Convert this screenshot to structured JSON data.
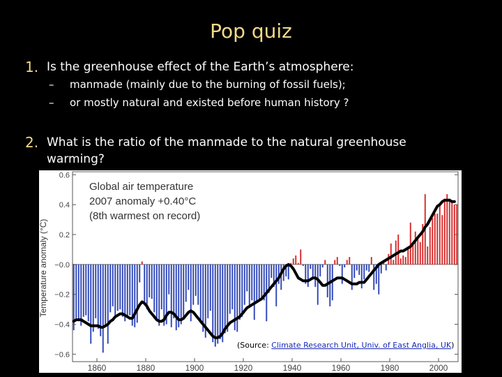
{
  "slide": {
    "title": "Pop quiz",
    "q1": {
      "num": "1.",
      "text": "Is the greenhouse effect of the Earth’s atmosphere:",
      "bullets": [
        "manmade (mainly due to the burning of fossil fuels);",
        "or mostly natural and existed before human history ?"
      ],
      "dash": "–"
    },
    "q2": {
      "num": "2.",
      "line1": "What is the ratio of the manmade to the natural greenhouse",
      "line2": "warming?"
    },
    "source": {
      "prefix": "(Source: ",
      "link": "Climate Research Unit, Univ. of East Anglia, UK",
      "suffix": ")"
    }
  },
  "chart_data": {
    "type": "bar",
    "title_lines": [
      "Global air temperature",
      "2007 anomaly +0.40°C",
      "(8th warmest on record)"
    ],
    "ylabel": "Temperature anomaly (°C)",
    "xlabel": "",
    "xlim": [
      1850,
      2008
    ],
    "ylim": [
      -0.65,
      0.62
    ],
    "xticks": [
      1860,
      1880,
      1900,
      1920,
      1940,
      1960,
      1980,
      2000
    ],
    "yticks": [
      0.6,
      0.4,
      0.2,
      -0.0,
      -0.2,
      -0.4,
      -0.6
    ],
    "ytick_labels": [
      "0.6",
      "0.4",
      "0.2",
      "−0.0",
      "−0.2",
      "−0.4",
      "−0.6"
    ],
    "colors": {
      "positive": "#d62a2a",
      "negative": "#2f46b8",
      "smooth": "#000000",
      "axis": "#555555",
      "annot": "#333333"
    },
    "start_year": 1850,
    "values": [
      -0.44,
      -0.36,
      -0.38,
      -0.41,
      -0.35,
      -0.34,
      -0.38,
      -0.53,
      -0.45,
      -0.36,
      -0.43,
      -0.48,
      -0.59,
      -0.4,
      -0.53,
      -0.32,
      -0.28,
      -0.36,
      -0.31,
      -0.3,
      -0.35,
      -0.38,
      -0.36,
      -0.34,
      -0.41,
      -0.42,
      -0.39,
      -0.12,
      0.02,
      -0.25,
      -0.3,
      -0.22,
      -0.23,
      -0.32,
      -0.38,
      -0.41,
      -0.3,
      -0.41,
      -0.4,
      -0.2,
      -0.42,
      -0.36,
      -0.44,
      -0.42,
      -0.4,
      -0.37,
      -0.25,
      -0.17,
      -0.38,
      -0.27,
      -0.21,
      -0.27,
      -0.39,
      -0.45,
      -0.49,
      -0.36,
      -0.31,
      -0.52,
      -0.55,
      -0.53,
      -0.5,
      -0.52,
      -0.46,
      -0.45,
      -0.33,
      -0.3,
      -0.44,
      -0.45,
      -0.37,
      -0.35,
      -0.27,
      -0.18,
      -0.29,
      -0.24,
      -0.37,
      -0.25,
      -0.23,
      -0.22,
      -0.24,
      -0.38,
      -0.19,
      -0.09,
      -0.15,
      -0.28,
      -0.13,
      -0.17,
      -0.11,
      -0.08,
      -0.1,
      0.01,
      0.04,
      0.06,
      0.01,
      0.1,
      -0.01,
      -0.13,
      -0.15,
      -0.03,
      -0.09,
      -0.15,
      -0.27,
      -0.08,
      -0.02,
      0.03,
      -0.22,
      -0.28,
      -0.24,
      0.03,
      0.05,
      -0.01,
      -0.13,
      -0.02,
      0.03,
      0.05,
      -0.17,
      -0.09,
      -0.04,
      -0.07,
      -0.16,
      -0.1,
      -0.04,
      -0.05,
      0.05,
      -0.17,
      -0.13,
      -0.2,
      -0.06,
      0.03,
      -0.04,
      0.07,
      0.14,
      0.03,
      0.16,
      0.2,
      0.04,
      0.06,
      0.05,
      0.11,
      0.28,
      0.13,
      0.22,
      0.17,
      0.15,
      0.27,
      0.47,
      0.12,
      0.25,
      0.31,
      0.34,
      0.34,
      0.41,
      0.33,
      0.44,
      0.47,
      0.44,
      0.42,
      0.4,
      0.4
    ],
    "smooth": [
      -0.38,
      -0.37,
      -0.37,
      -0.37,
      -0.38,
      -0.39,
      -0.4,
      -0.41,
      -0.41,
      -0.41,
      -0.41,
      -0.42,
      -0.42,
      -0.41,
      -0.4,
      -0.38,
      -0.37,
      -0.35,
      -0.34,
      -0.33,
      -0.33,
      -0.34,
      -0.35,
      -0.36,
      -0.36,
      -0.33,
      -0.3,
      -0.27,
      -0.25,
      -0.26,
      -0.28,
      -0.31,
      -0.33,
      -0.35,
      -0.37,
      -0.38,
      -0.38,
      -0.37,
      -0.34,
      -0.32,
      -0.32,
      -0.33,
      -0.35,
      -0.37,
      -0.37,
      -0.36,
      -0.34,
      -0.32,
      -0.31,
      -0.32,
      -0.34,
      -0.36,
      -0.38,
      -0.4,
      -0.42,
      -0.44,
      -0.46,
      -0.48,
      -0.49,
      -0.49,
      -0.48,
      -0.46,
      -0.43,
      -0.41,
      -0.39,
      -0.38,
      -0.37,
      -0.36,
      -0.35,
      -0.33,
      -0.31,
      -0.29,
      -0.28,
      -0.27,
      -0.26,
      -0.25,
      -0.24,
      -0.23,
      -0.21,
      -0.19,
      -0.17,
      -0.15,
      -0.13,
      -0.11,
      -0.09,
      -0.06,
      -0.03,
      -0.01,
      0.0,
      -0.01,
      -0.03,
      -0.06,
      -0.09,
      -0.1,
      -0.11,
      -0.11,
      -0.11,
      -0.1,
      -0.09,
      -0.09,
      -0.1,
      -0.12,
      -0.14,
      -0.14,
      -0.13,
      -0.12,
      -0.11,
      -0.1,
      -0.09,
      -0.09,
      -0.09,
      -0.1,
      -0.11,
      -0.12,
      -0.13,
      -0.13,
      -0.13,
      -0.12,
      -0.12,
      -0.12,
      -0.1,
      -0.08,
      -0.06,
      -0.04,
      -0.02,
      0.0,
      0.01,
      0.02,
      0.03,
      0.04,
      0.05,
      0.06,
      0.07,
      0.08,
      0.09,
      0.09,
      0.1,
      0.11,
      0.12,
      0.14,
      0.16,
      0.18,
      0.2,
      0.22,
      0.25,
      0.27,
      0.3,
      0.33,
      0.36,
      0.39,
      0.4,
      0.42,
      0.43,
      0.43,
      0.43,
      0.42,
      0.42
    ]
  }
}
